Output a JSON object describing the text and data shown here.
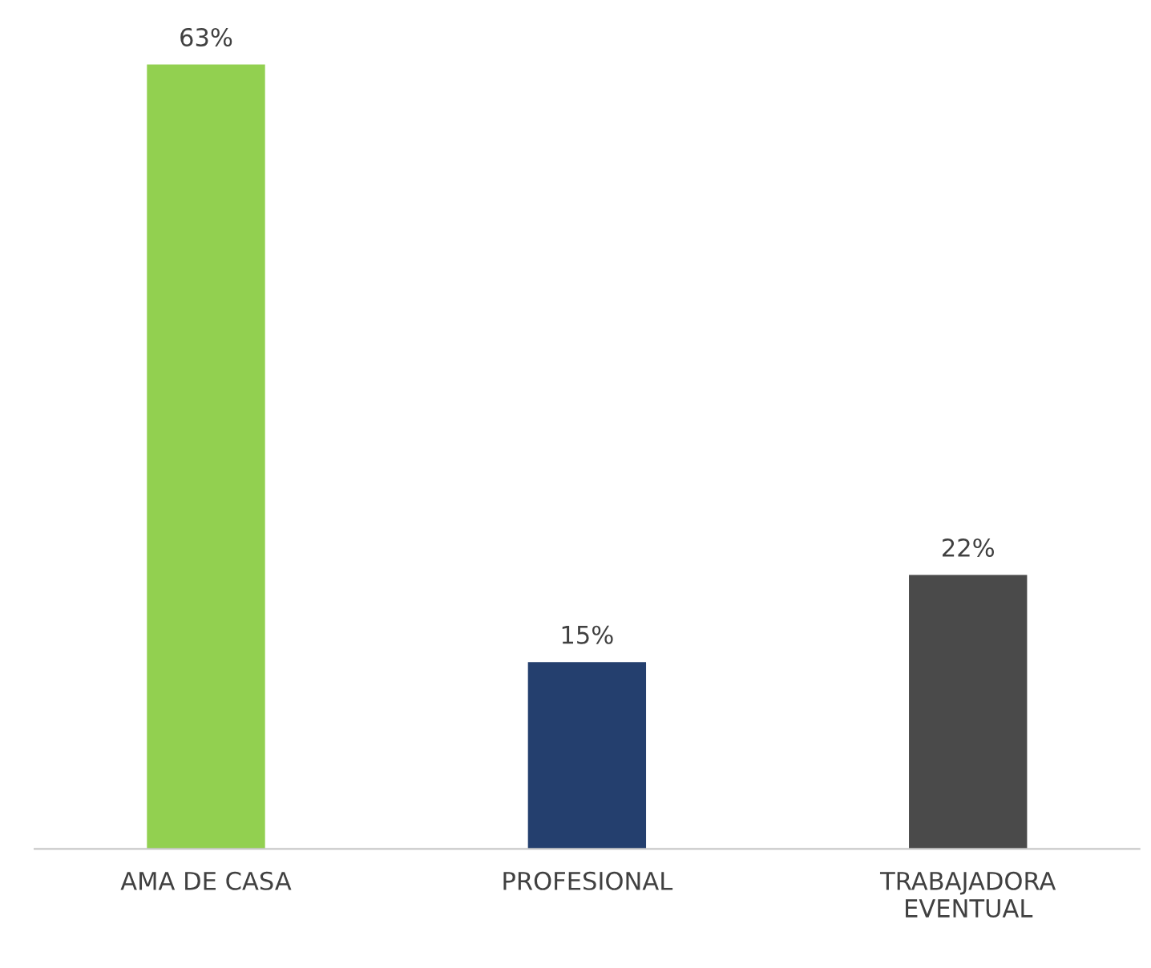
{
  "chart_data": {
    "type": "bar",
    "categories": [
      "AMA DE CASA",
      "PROFESIONAL",
      "TRABAJADORA EVENTUAL"
    ],
    "values": [
      63,
      15,
      22
    ],
    "value_labels": [
      "63%",
      "15%",
      "22%"
    ],
    "colors": [
      "#92d050",
      "#243f6e",
      "#4a4a4a"
    ],
    "grid": false,
    "legend": false
  }
}
